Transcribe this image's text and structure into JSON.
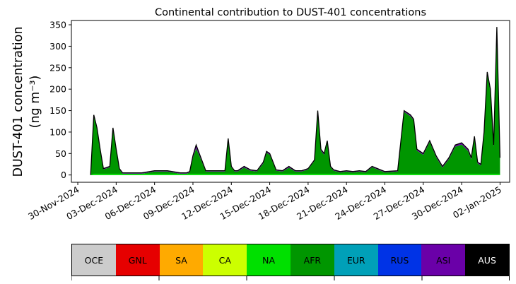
{
  "chart_data": {
    "type": "area",
    "stacked": true,
    "title": "Continental contribution to DUST-401 concentrations",
    "ylabel_line1": "DUST-401 concentration",
    "ylabel_line2": "(ng m⁻³)",
    "ylim": [
      0,
      360
    ],
    "yticks": [
      0,
      50,
      100,
      150,
      200,
      250,
      300,
      350
    ],
    "xlim": [
      "2024-11-29",
      "2025-01-03"
    ],
    "xticks": [
      "30-Nov-2024",
      "03-Dec-2024",
      "06-Dec-2024",
      "09-Dec-2024",
      "12-Dec-2024",
      "15-Dec-2024",
      "18-Dec-2024",
      "21-Dec-2024",
      "24-Dec-2024",
      "27-Dec-2024",
      "30-Dec-2024",
      "02-Jan-2025"
    ],
    "grid": false,
    "legend_position": "bottom",
    "x": [
      "2024-12-01 00:00",
      "2024-12-01 06:00",
      "2024-12-01 12:00",
      "2024-12-01 18:00",
      "2024-12-02 00:00",
      "2024-12-02 12:00",
      "2024-12-02 18:00",
      "2024-12-03 00:00",
      "2024-12-03 06:00",
      "2024-12-03 12:00",
      "2024-12-04 00:00",
      "2024-12-05 00:00",
      "2024-12-06 00:00",
      "2024-12-07 00:00",
      "2024-12-08 00:00",
      "2024-12-08 12:00",
      "2024-12-08 18:00",
      "2024-12-09 00:00",
      "2024-12-09 06:00",
      "2024-12-09 12:00",
      "2024-12-10 00:00",
      "2024-12-11 00:00",
      "2024-12-11 12:00",
      "2024-12-11 18:00",
      "2024-12-12 00:00",
      "2024-12-12 06:00",
      "2024-12-12 12:00",
      "2024-12-13 00:00",
      "2024-12-13 12:00",
      "2024-12-14 00:00",
      "2024-12-14 12:00",
      "2024-12-14 18:00",
      "2024-12-15 00:00",
      "2024-12-15 12:00",
      "2024-12-16 00:00",
      "2024-12-16 12:00",
      "2024-12-17 00:00",
      "2024-12-17 12:00",
      "2024-12-18 00:00",
      "2024-12-18 12:00",
      "2024-12-18 18:00",
      "2024-12-19 00:00",
      "2024-12-19 06:00",
      "2024-12-19 12:00",
      "2024-12-19 18:00",
      "2024-12-20 00:00",
      "2024-12-20 06:00",
      "2024-12-20 12:00",
      "2024-12-21 00:00",
      "2024-12-21 12:00",
      "2024-12-22 00:00",
      "2024-12-22 12:00",
      "2024-12-23 00:00",
      "2024-12-24 00:00",
      "2024-12-25 00:00",
      "2024-12-25 12:00",
      "2024-12-26 00:00",
      "2024-12-26 06:00",
      "2024-12-26 12:00",
      "2024-12-27 00:00",
      "2024-12-27 12:00",
      "2024-12-28 00:00",
      "2024-12-28 12:00",
      "2024-12-29 00:00",
      "2024-12-29 12:00",
      "2024-12-30 00:00",
      "2024-12-30 12:00",
      "2024-12-30 18:00",
      "2024-12-31 00:00",
      "2024-12-31 06:00",
      "2024-12-31 12:00",
      "2024-12-31 18:00",
      "2025-01-01 00:00",
      "2025-01-01 06:00",
      "2025-01-01 12:00",
      "2025-01-01 18:00",
      "2025-01-02 00:00"
    ],
    "total": [
      0,
      140,
      110,
      60,
      15,
      20,
      110,
      60,
      15,
      5,
      5,
      5,
      10,
      10,
      5,
      5,
      8,
      45,
      70,
      50,
      10,
      10,
      10,
      85,
      20,
      10,
      10,
      20,
      12,
      10,
      30,
      55,
      50,
      12,
      10,
      20,
      10,
      10,
      15,
      35,
      150,
      60,
      50,
      80,
      20,
      12,
      10,
      8,
      10,
      8,
      10,
      8,
      20,
      8,
      10,
      150,
      140,
      130,
      60,
      50,
      80,
      45,
      20,
      40,
      70,
      75,
      60,
      40,
      90,
      30,
      25,
      100,
      240,
      200,
      70,
      345,
      40
    ],
    "series": [
      {
        "name": "ASI",
        "values": [
          0,
          3,
          3,
          2,
          2,
          2,
          3,
          2,
          2,
          2,
          2,
          2,
          2,
          2,
          2,
          2,
          2,
          5,
          8,
          5,
          2,
          2,
          2,
          3,
          2,
          2,
          2,
          3,
          2,
          2,
          3,
          3,
          3,
          2,
          2,
          3,
          2,
          2,
          2,
          2,
          3,
          3,
          3,
          3,
          2,
          2,
          2,
          2,
          2,
          2,
          2,
          2,
          2,
          2,
          2,
          3,
          3,
          3,
          3,
          3,
          3,
          3,
          3,
          3,
          4,
          4,
          4,
          4,
          4,
          3,
          3,
          4,
          5,
          5,
          4,
          8,
          4
        ]
      },
      {
        "name": "AUS",
        "values": [
          0,
          0,
          0,
          0,
          0,
          0,
          0,
          0,
          0,
          0,
          0,
          0,
          0,
          0,
          0,
          0,
          0,
          0,
          0,
          0,
          0,
          0,
          0,
          0,
          0,
          0,
          0,
          0,
          0,
          0,
          0,
          0,
          0,
          0,
          0,
          0,
          0,
          0,
          0,
          0,
          0,
          0,
          0,
          0,
          0,
          0,
          0,
          0,
          0,
          0,
          0,
          0,
          0,
          0,
          0,
          0,
          0,
          0,
          0,
          0,
          0,
          0,
          0,
          0,
          0,
          0,
          0,
          0,
          0,
          0,
          0,
          0,
          0,
          0,
          0,
          0,
          0
        ]
      }
    ],
    "legend": [
      "OCE",
      "GNL",
      "SA",
      "CA",
      "NA",
      "AFR",
      "EUR",
      "RUS",
      "ASI",
      "AUS"
    ],
    "colors": {
      "OCE": "#cccccc",
      "GNL": "#e60000",
      "SA": "#ffaa00",
      "CA": "#ccff00",
      "NA": "#00e000",
      "AFR": "#009600",
      "EUR": "#00a0b8",
      "RUS": "#0033e6",
      "ASI": "#6a00a8",
      "AUS": "#000000"
    }
  }
}
